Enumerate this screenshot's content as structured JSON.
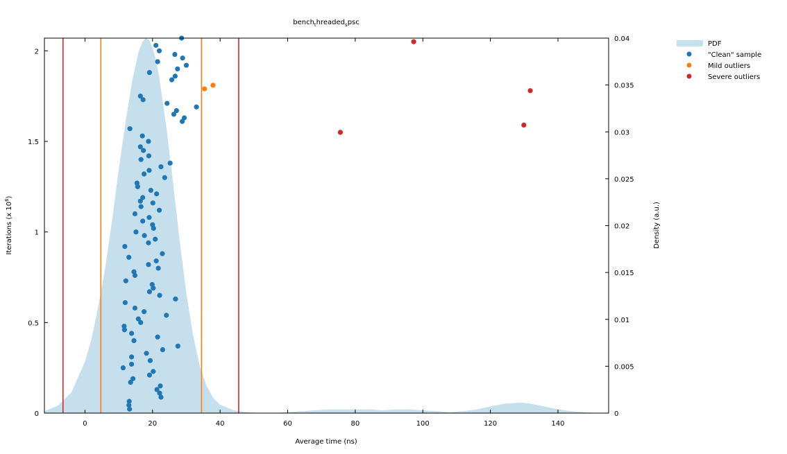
{
  "chart_data": {
    "type": "scatter",
    "title": "bench_threaded_spsc",
    "title_parts": {
      "a": "bench",
      "b": "t",
      "c": "hreaded",
      "d": "s",
      "e": "psc"
    },
    "xlabel": "Average time (ns)",
    "ylabel_left": {
      "main": "Iterations (x 10",
      "exp": "6",
      "close": ")"
    },
    "ylabel_right": "Density (a.u.)",
    "xlim": [
      -12,
      155
    ],
    "ylim_left": [
      0,
      2.07
    ],
    "ylim_right": [
      0,
      0.04
    ],
    "x_ticks": [
      0,
      20,
      40,
      60,
      80,
      100,
      120,
      140
    ],
    "y_left_ticks": [
      0,
      0.5,
      1,
      1.5,
      2
    ],
    "y_left_tick_labels": [
      "0",
      "0.5",
      "1",
      "1.5",
      "2"
    ],
    "y_right_ticks": [
      0,
      0.005,
      0.01,
      0.015,
      0.02,
      0.025,
      0.03,
      0.035,
      0.04
    ],
    "y_right_tick_labels": [
      "0",
      "0.005",
      "0.01",
      "0.015",
      "0.02",
      "0.025",
      "0.03",
      "0.035",
      "0.04"
    ],
    "grid": false,
    "legend_position": "top-right outside",
    "legend": [
      "PDF",
      "\"Clean\" sample",
      "Mild outliers",
      "Severe outliers"
    ],
    "colors": {
      "pdf": "#c6dfec",
      "clean": "#1f77b4",
      "mild": "#ff7f0e",
      "severe": "#d62728"
    },
    "thresholds": {
      "severe": [
        -6.5,
        45.5
      ],
      "mild": [
        4.7,
        34.5
      ]
    },
    "pdf": {
      "x": [
        -12,
        -8,
        -4,
        0,
        2,
        4,
        6,
        8,
        10,
        12,
        14,
        16,
        17,
        18,
        19,
        20,
        21,
        22,
        24,
        26,
        28,
        30,
        32,
        34,
        36,
        38,
        40,
        44,
        48,
        52,
        56,
        60,
        64,
        68,
        72,
        76,
        80,
        84,
        88,
        92,
        96,
        100,
        104,
        108,
        112,
        116,
        120,
        124,
        128,
        130,
        132,
        136,
        140,
        144,
        148,
        152
      ],
      "density": [
        0.0002,
        0.0008,
        0.0022,
        0.0055,
        0.008,
        0.0115,
        0.0155,
        0.0205,
        0.026,
        0.031,
        0.0355,
        0.0387,
        0.0396,
        0.04,
        0.0398,
        0.039,
        0.0377,
        0.0358,
        0.0308,
        0.0248,
        0.0185,
        0.0128,
        0.0083,
        0.005,
        0.0029,
        0.0016,
        0.0009,
        0.0003,
        0.0001,
        0.0,
        0.0,
        0.0001,
        0.0002,
        0.0003,
        0.0004,
        0.0004,
        0.0004,
        0.0004,
        0.0003,
        0.0004,
        0.0004,
        0.0003,
        0.0002,
        0.0001,
        0.0002,
        0.0004,
        0.0007,
        0.001,
        0.0011,
        0.0011,
        0.001,
        0.0007,
        0.0004,
        0.0002,
        0.0001,
        0.0
      ]
    },
    "series": [
      {
        "name": "\"Clean\" sample",
        "points": [
          [
            13.2,
            0.022
          ],
          [
            13.0,
            0.044
          ],
          [
            13.1,
            0.065
          ],
          [
            22.5,
            0.088
          ],
          [
            22.1,
            0.11
          ],
          [
            21.3,
            0.13
          ],
          [
            22.3,
            0.15
          ],
          [
            13.5,
            0.17
          ],
          [
            14.2,
            0.19
          ],
          [
            19.1,
            0.21
          ],
          [
            20.2,
            0.23
          ],
          [
            11.3,
            0.25
          ],
          [
            13.8,
            0.27
          ],
          [
            19.3,
            0.29
          ],
          [
            13.8,
            0.31
          ],
          [
            18.2,
            0.33
          ],
          [
            23.0,
            0.35
          ],
          [
            27.5,
            0.37
          ],
          [
            14.5,
            0.4
          ],
          [
            21.5,
            0.42
          ],
          [
            13.8,
            0.44
          ],
          [
            11.7,
            0.46
          ],
          [
            11.6,
            0.48
          ],
          [
            16.5,
            0.5
          ],
          [
            15.8,
            0.52
          ],
          [
            24.1,
            0.54
          ],
          [
            17.5,
            0.56
          ],
          [
            14.8,
            0.58
          ],
          [
            11.9,
            0.61
          ],
          [
            26.8,
            0.63
          ],
          [
            22.1,
            0.65
          ],
          [
            19.1,
            0.67
          ],
          [
            20.2,
            0.69
          ],
          [
            19.9,
            0.71
          ],
          [
            12.1,
            0.73
          ],
          [
            14.8,
            0.76
          ],
          [
            14.5,
            0.78
          ],
          [
            21.7,
            0.8
          ],
          [
            18.8,
            0.82
          ],
          [
            21.1,
            0.84
          ],
          [
            13.0,
            0.86
          ],
          [
            22.9,
            0.88
          ],
          [
            11.8,
            0.92
          ],
          [
            18.8,
            0.94
          ],
          [
            20.8,
            0.96
          ],
          [
            17.6,
            0.98
          ],
          [
            15.1,
            1.0
          ],
          [
            20.3,
            1.02
          ],
          [
            20.0,
            1.04
          ],
          [
            17.1,
            1.06
          ],
          [
            19.0,
            1.08
          ],
          [
            14.8,
            1.1
          ],
          [
            22.0,
            1.12
          ],
          [
            16.6,
            1.14
          ],
          [
            20.1,
            1.16
          ],
          [
            16.4,
            1.17
          ],
          [
            17.1,
            1.19
          ],
          [
            21.2,
            1.21
          ],
          [
            19.5,
            1.23
          ],
          [
            15.6,
            1.25
          ],
          [
            15.4,
            1.27
          ],
          [
            23.6,
            1.3
          ],
          [
            17.5,
            1.32
          ],
          [
            19.0,
            1.34
          ],
          [
            22.5,
            1.36
          ],
          [
            25.2,
            1.38
          ],
          [
            16.6,
            1.4
          ],
          [
            18.9,
            1.42
          ],
          [
            17.3,
            1.45
          ],
          [
            16.4,
            1.47
          ],
          [
            18.8,
            1.5
          ],
          [
            17.0,
            1.53
          ],
          [
            13.3,
            1.57
          ],
          [
            28.8,
            1.61
          ],
          [
            29.4,
            1.63
          ],
          [
            26.3,
            1.65
          ],
          [
            27.1,
            1.67
          ],
          [
            33.0,
            1.69
          ],
          [
            24.3,
            1.71
          ],
          [
            17.2,
            1.73
          ],
          [
            16.4,
            1.75
          ],
          [
            25.7,
            1.84
          ],
          [
            26.7,
            1.86
          ],
          [
            19.1,
            1.88
          ],
          [
            27.4,
            1.9
          ],
          [
            30.0,
            1.92
          ],
          [
            21.5,
            1.94
          ],
          [
            28.9,
            1.96
          ],
          [
            26.6,
            1.98
          ],
          [
            22.0,
            2.0
          ],
          [
            21.0,
            2.03
          ],
          [
            28.6,
            2.07
          ]
        ]
      },
      {
        "name": "Mild outliers",
        "points": [
          [
            35.4,
            1.79
          ],
          [
            37.9,
            1.81
          ]
        ]
      },
      {
        "name": "Severe outliers",
        "points": [
          [
            75.6,
            1.55
          ],
          [
            97.3,
            2.05
          ],
          [
            129.9,
            1.59
          ],
          [
            131.8,
            1.78
          ]
        ]
      }
    ]
  }
}
